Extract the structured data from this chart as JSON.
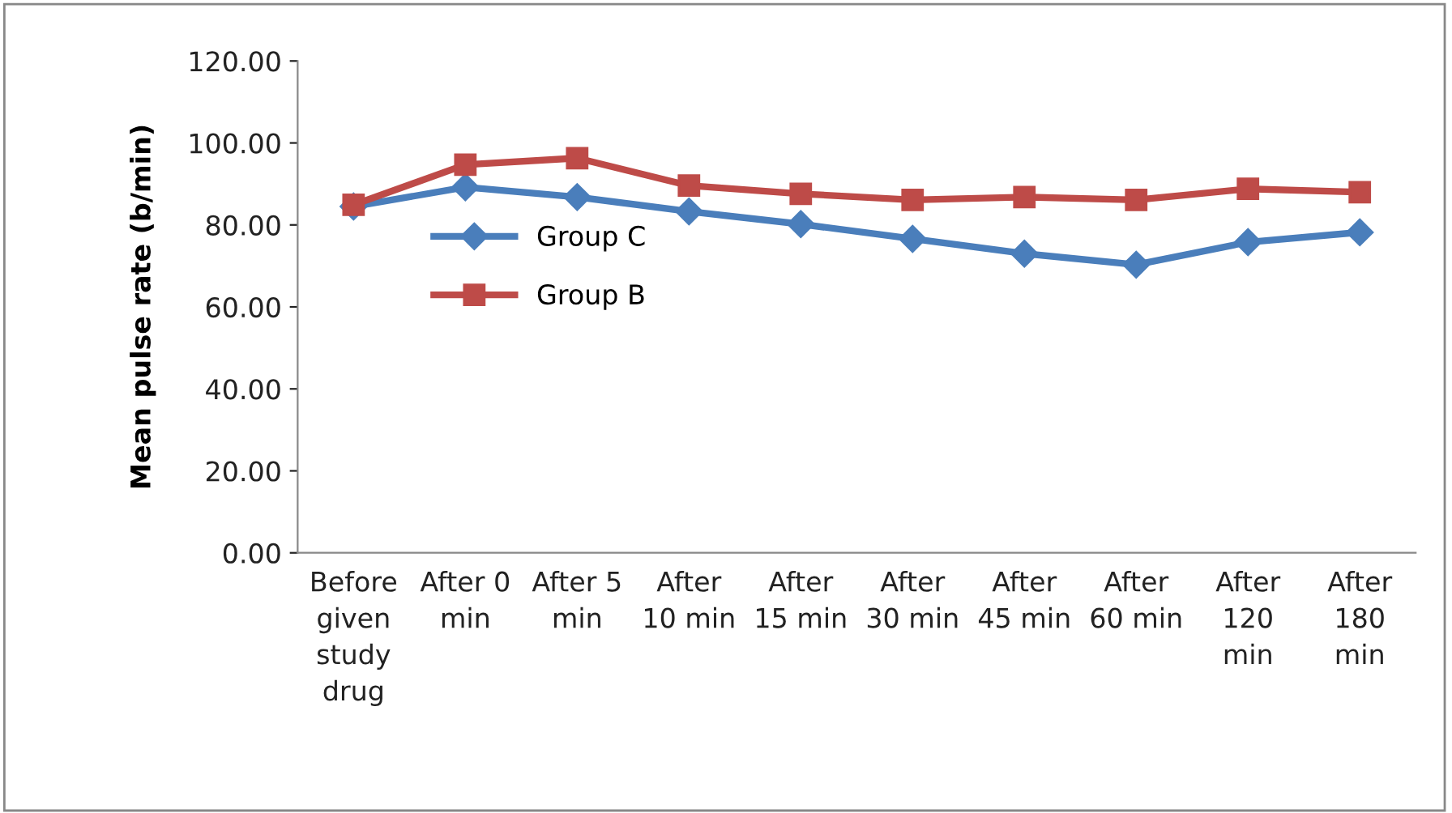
{
  "chart_data": {
    "type": "line",
    "ylabel": "Mean pulse rate (b/min)",
    "categories": [
      "Before\ngiven\nstudy\ndrug",
      "After 0\nmin",
      "After 5\nmin",
      "After\n10 min",
      "After\n15 min",
      "After\n30 min",
      "After\n45 min",
      "After\n60 min",
      "After\n120\nmin",
      "After\n180\nmin"
    ],
    "series": [
      {
        "name": "Group C",
        "color": "#4a7ebb",
        "marker": "diamond",
        "values": [
          84.5,
          89.2,
          86.8,
          83.3,
          80.2,
          76.6,
          73.0,
          70.3,
          75.8,
          78.2
        ]
      },
      {
        "name": "Group B",
        "color": "#be4b48",
        "marker": "square",
        "values": [
          84.9,
          94.7,
          96.3,
          89.6,
          87.6,
          86.1,
          86.8,
          86.1,
          88.8,
          88.0
        ]
      }
    ],
    "ylim": [
      0,
      120
    ],
    "yticks": [
      {
        "value": 0,
        "label": "0.00"
      },
      {
        "value": 20,
        "label": "20.00"
      },
      {
        "value": 40,
        "label": "40.00"
      },
      {
        "value": 60,
        "label": "60.00"
      },
      {
        "value": 80,
        "label": "80.00"
      },
      {
        "value": 100,
        "label": "100.00"
      },
      {
        "value": 120,
        "label": "120.00"
      }
    ],
    "grid": false,
    "legend": "left",
    "line_style": "solid"
  }
}
